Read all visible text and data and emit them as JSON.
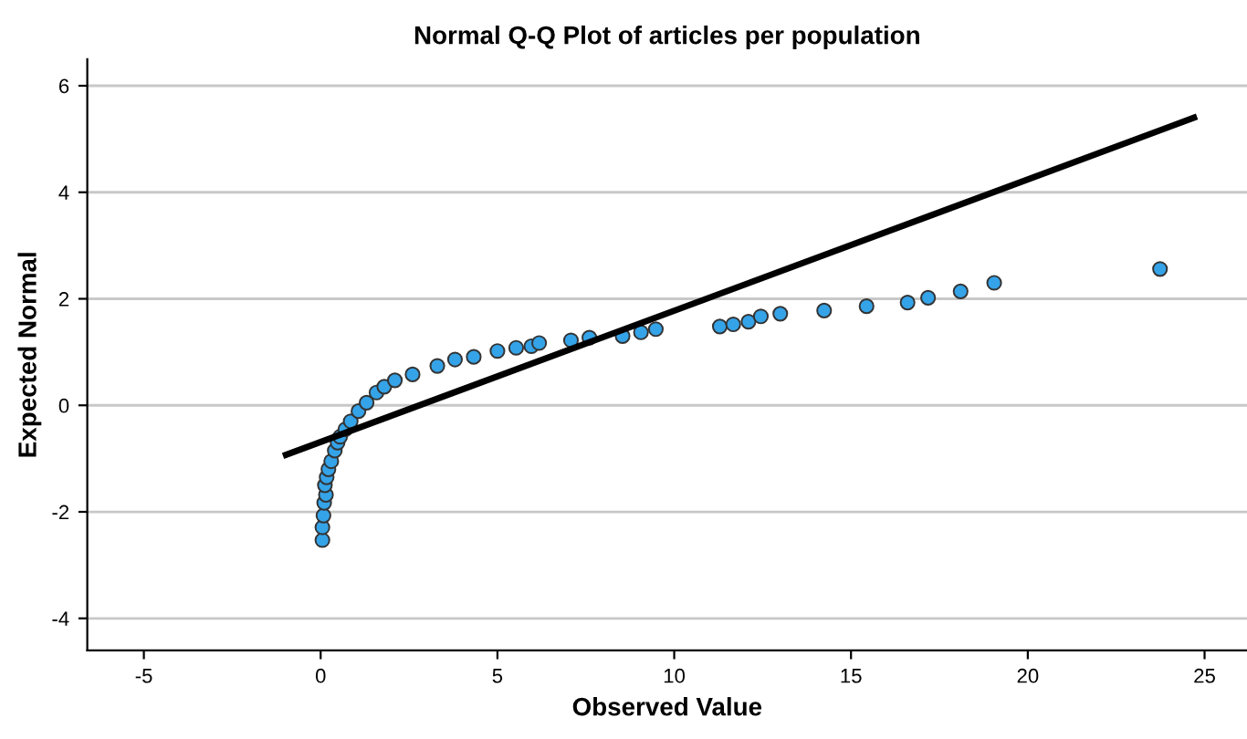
{
  "chart_data": {
    "type": "scatter",
    "title": "Normal Q-Q Plot of articles per population",
    "xlabel": "Observed Value",
    "ylabel": "Expected Normal",
    "series": [
      {
        "color": "#35a3e8",
        "marker": "circle",
        "x": [
          0.05,
          0.05,
          0.08,
          0.1,
          0.15,
          0.12,
          0.17,
          0.22,
          0.3,
          0.4,
          0.48,
          0.55,
          0.7,
          0.85,
          1.07,
          1.3,
          1.58,
          1.8,
          2.1,
          2.6,
          3.3,
          3.8,
          4.33,
          5.0,
          5.53,
          5.96,
          6.18,
          7.08,
          7.6,
          8.54,
          9.06,
          9.48,
          11.29,
          11.67,
          12.1,
          12.45,
          13.0,
          14.24,
          15.44,
          16.6,
          17.18,
          18.1,
          19.05,
          23.74
        ],
        "values": [
          -2.53,
          -2.29,
          -2.07,
          -1.83,
          -1.68,
          -1.5,
          -1.35,
          -1.2,
          -1.05,
          -0.85,
          -0.7,
          -0.59,
          -0.45,
          -0.3,
          -0.11,
          0.05,
          0.24,
          0.35,
          0.47,
          0.58,
          0.74,
          0.86,
          0.91,
          1.02,
          1.08,
          1.11,
          1.17,
          1.22,
          1.27,
          1.3,
          1.37,
          1.43,
          1.48,
          1.52,
          1.57,
          1.67,
          1.72,
          1.78,
          1.86,
          1.93,
          2.02,
          2.14,
          2.3,
          2.56
        ]
      },
      {
        "type": "line",
        "color": "#000000",
        "line_style": "solid",
        "x": [
          -0.98,
          24.7
        ],
        "values": [
          -0.93,
          5.4
        ]
      }
    ],
    "xlim": [
      -6.6,
      26.2
    ],
    "ylim": [
      -4.6,
      6.5
    ],
    "xticks": [
      -5,
      0,
      5,
      10,
      15,
      20,
      25
    ],
    "yticks": [
      -4,
      -2,
      0,
      2,
      4,
      6
    ],
    "grid": "y",
    "legend": false
  }
}
